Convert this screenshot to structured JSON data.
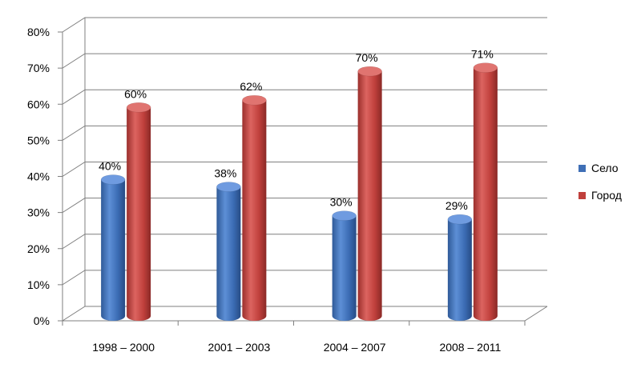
{
  "chart_data": {
    "type": "bar",
    "categories": [
      "1998 – 2000",
      "2001 – 2003",
      "2004 – 2007",
      "2008 – 2011"
    ],
    "series": [
      {
        "name": "Село",
        "values": [
          40,
          38,
          30,
          29
        ],
        "labels": [
          "40%",
          "38%",
          "30%",
          "29%"
        ],
        "color": "#3f6fb6"
      },
      {
        "name": "Город",
        "values": [
          60,
          62,
          70,
          71
        ],
        "labels": [
          "60%",
          "62%",
          "70%",
          "71%"
        ],
        "color": "#c0403c"
      }
    ],
    "y_ticks": [
      "0%",
      "10%",
      "20%",
      "30%",
      "40%",
      "50%",
      "60%",
      "70%",
      "80%"
    ],
    "ylim": [
      0,
      80
    ],
    "grid": true,
    "legend_position": "right",
    "style": "3d-cylinder"
  }
}
